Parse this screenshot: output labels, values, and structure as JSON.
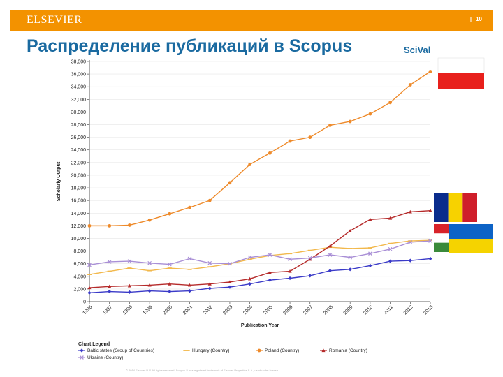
{
  "header": {
    "brand": "ELSEVIER",
    "page_number": "10"
  },
  "slide": {
    "title": "Распределение публикаций в Scopus",
    "logo_text": "SciVal",
    "footer": "© 2014 Elsevier B.V. All rights reserved. Scopus ® is a registered trademark of Elsevier Properties S.A., used under license."
  },
  "flags": [
    {
      "name": "Poland",
      "colors": [
        "#ffffff",
        "#e8201c"
      ]
    },
    {
      "name": "Romania",
      "colors": [
        "#0a2c8c",
        "#f7d200",
        "#cf1e2a"
      ]
    },
    {
      "name": "Hungary",
      "colors": [
        "#d8232a",
        "#ffffff",
        "#3a8a3a"
      ]
    },
    {
      "name": "Ukraine",
      "colors": [
        "#0d63c6",
        "#f5d300"
      ]
    }
  ],
  "colors": {
    "topbar": "#f39200",
    "title": "#1a6aa0"
  },
  "chart_data": {
    "type": "line",
    "xlabel": "Publication Year",
    "ylabel": "Scholarly Output",
    "x": [
      "1996",
      "1997",
      "1998",
      "1999",
      "2000",
      "2001",
      "2002",
      "2003",
      "2004",
      "2005",
      "2006",
      "2007",
      "2008",
      "2009",
      "2010",
      "2011",
      "2012",
      "2013"
    ],
    "ylim": [
      0,
      38000
    ],
    "yticks": [
      "0",
      "2,000",
      "4,000",
      "6,000",
      "8,000",
      "10,000",
      "12,000",
      "14,000",
      "16,000",
      "18,000",
      "20,000",
      "22,000",
      "24,000",
      "26,000",
      "28,000",
      "30,000",
      "32,000",
      "34,000",
      "36,000",
      "38,000"
    ],
    "legend_title": "Chart Legend",
    "legend_position": "bottom",
    "series": [
      {
        "name": "Baltic states (Group of Countries)",
        "color": "#3a3ac8",
        "marker": "diamond",
        "values": [
          1400,
          1600,
          1500,
          1700,
          1600,
          1700,
          2100,
          2300,
          2800,
          3400,
          3700,
          4100,
          4900,
          5100,
          5700,
          6400,
          6500,
          6800
        ]
      },
      {
        "name": "Hungary (Country)",
        "color": "#f2b84b",
        "marker": "dash",
        "values": [
          4300,
          4800,
          5300,
          4900,
          5300,
          5100,
          5500,
          6000,
          6700,
          7300,
          7600,
          8100,
          8600,
          8400,
          8500,
          9200,
          9600,
          9700
        ]
      },
      {
        "name": "Poland (Country)",
        "color": "#ee8a2a",
        "marker": "circle",
        "values": [
          12000,
          12000,
          12100,
          12900,
          13900,
          14900,
          16000,
          18800,
          21700,
          23500,
          25400,
          26000,
          27900,
          28500,
          29700,
          31500,
          34300,
          36400
        ]
      },
      {
        "name": "Romania (Country)",
        "color": "#b52a2a",
        "marker": "triangle",
        "values": [
          2200,
          2400,
          2500,
          2600,
          2800,
          2600,
          2800,
          3100,
          3600,
          4600,
          4800,
          6700,
          8800,
          11200,
          13000,
          13200,
          14200,
          14400
        ]
      },
      {
        "name": "Ukraine (Country)",
        "color": "#a98fd6",
        "marker": "x",
        "values": [
          5800,
          6300,
          6400,
          6100,
          5900,
          6800,
          6100,
          6000,
          7000,
          7400,
          6700,
          6900,
          7400,
          7000,
          7600,
          8300,
          9400,
          9600
        ]
      }
    ]
  }
}
